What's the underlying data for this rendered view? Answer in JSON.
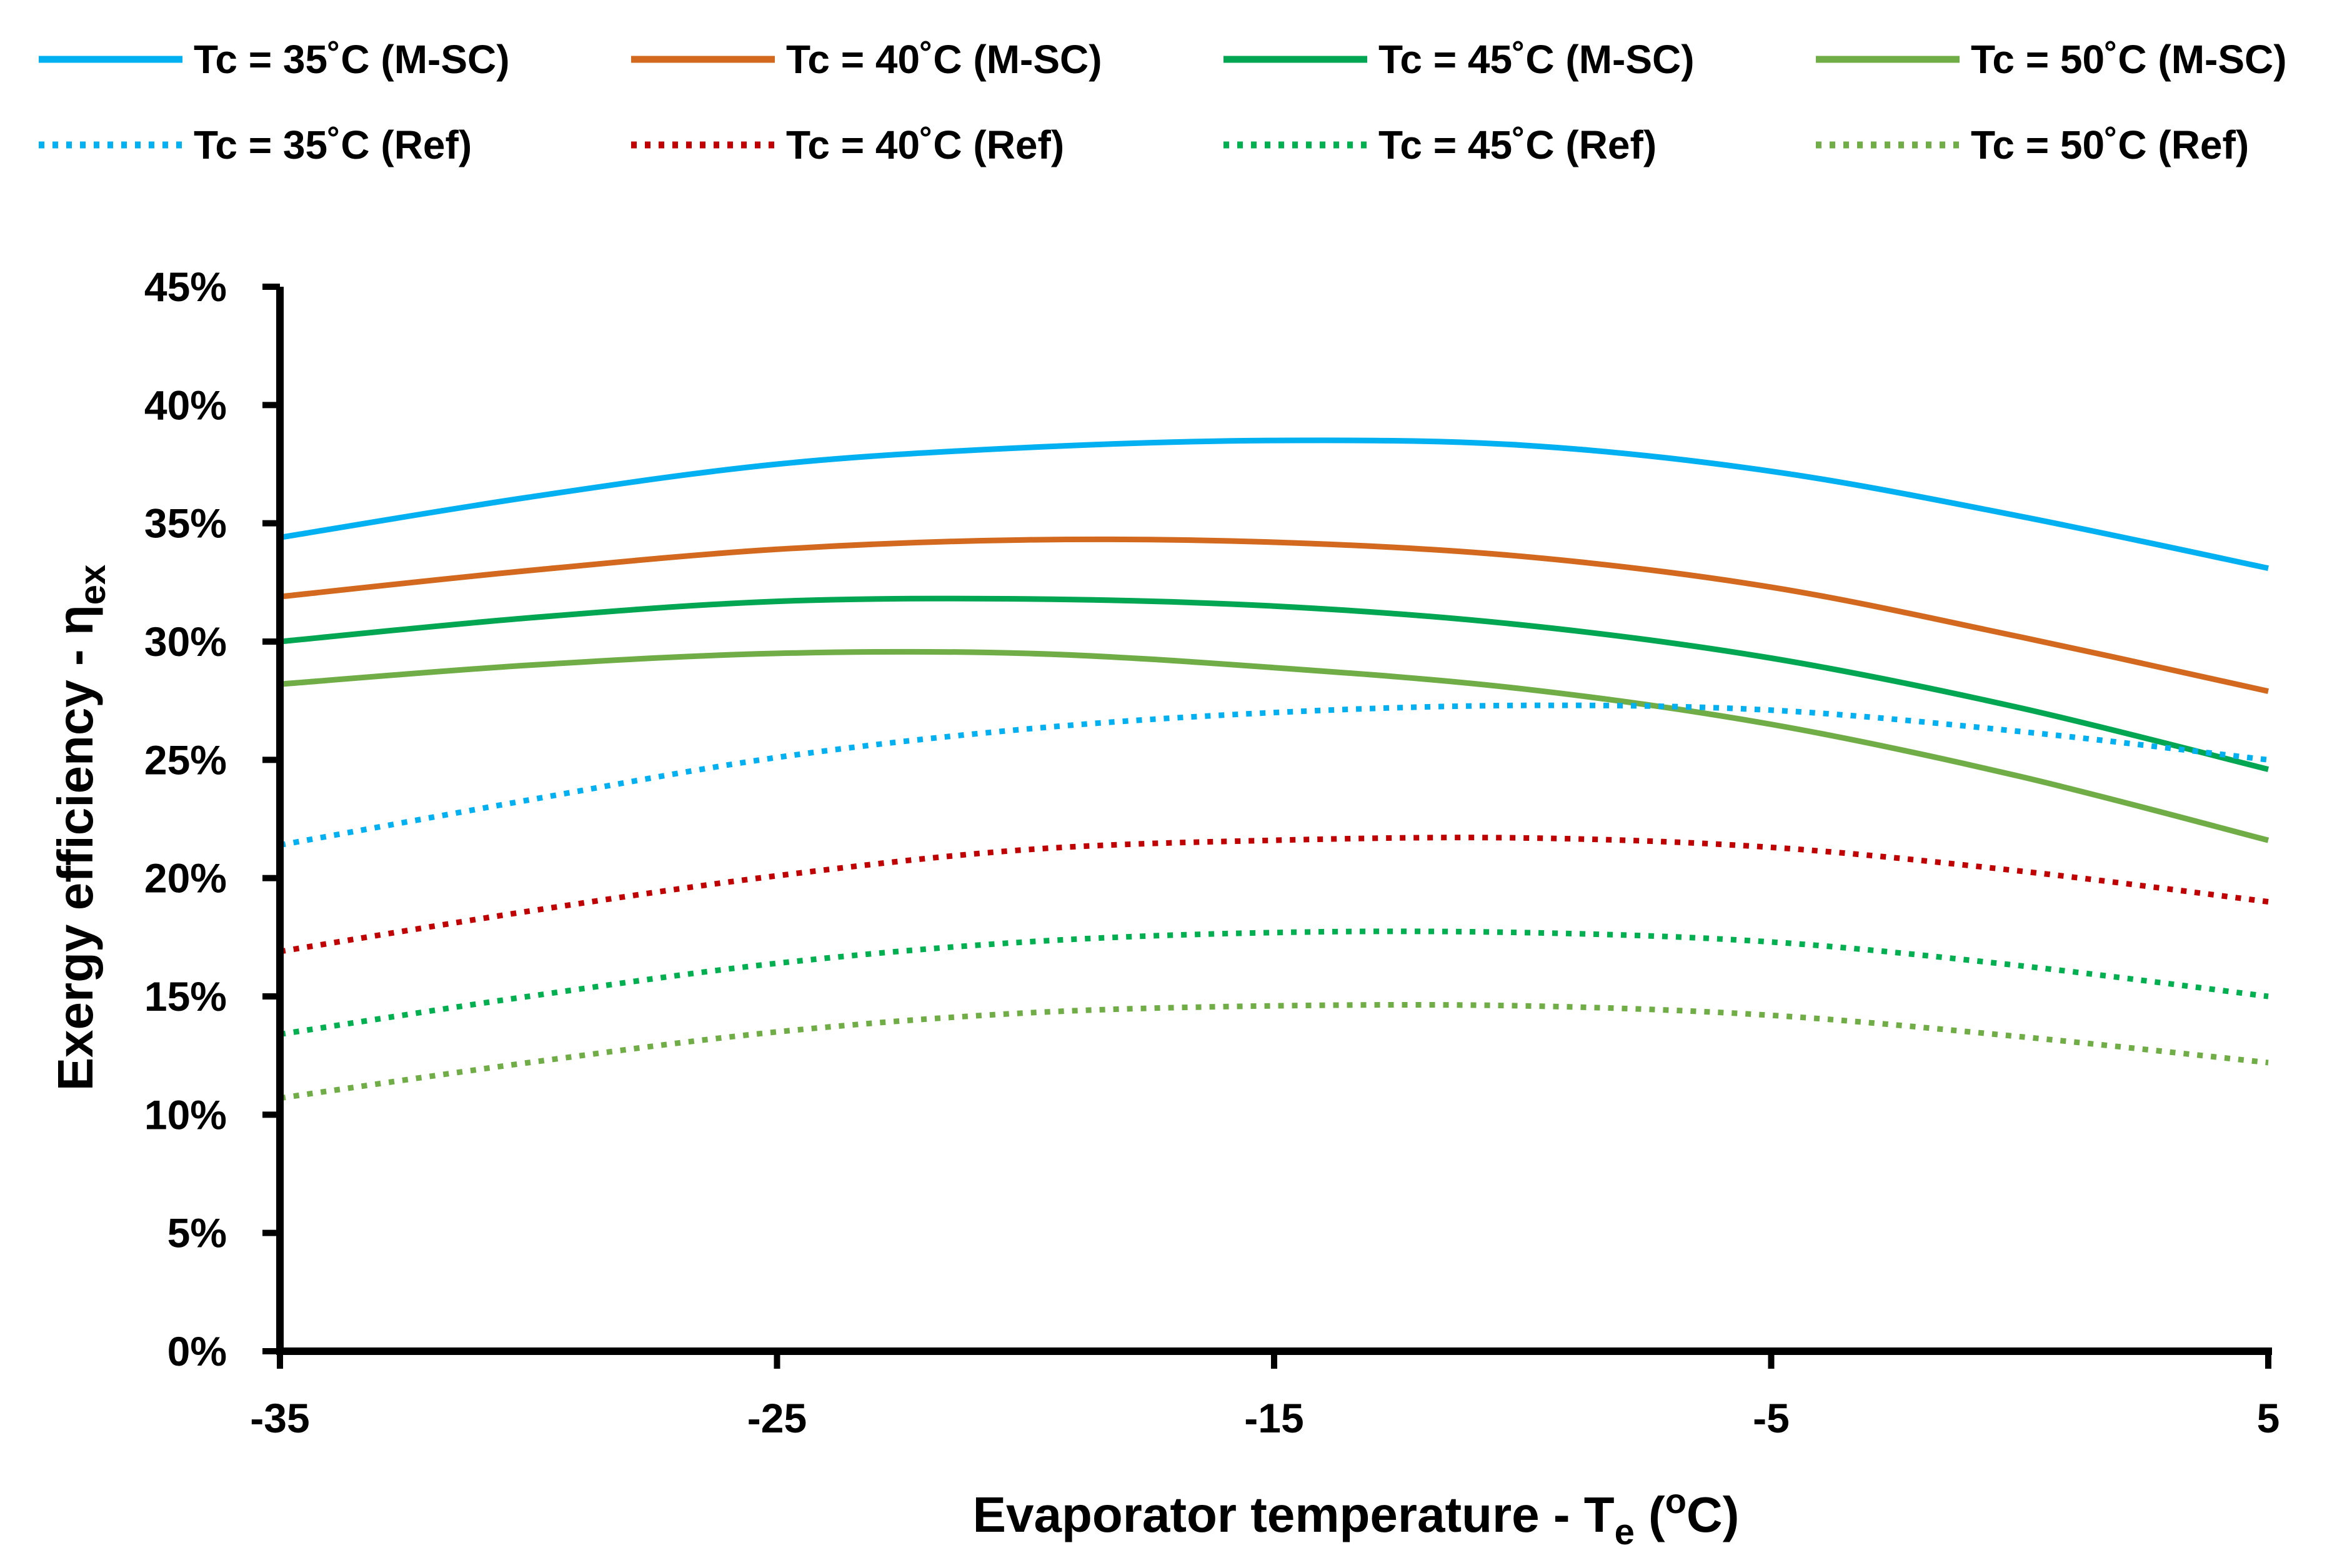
{
  "chart_data": {
    "type": "line",
    "title": "",
    "xlabel": {
      "main": "Evaporator temperature - T",
      "sub": "e",
      "open": " (",
      "sup": "o",
      "tail": "C)"
    },
    "ylabel": {
      "main": "Exergy efficiency - η",
      "sub": "ex"
    },
    "xlim": [
      -35,
      5
    ],
    "ylim": [
      0,
      45
    ],
    "x_ticks": [
      -35,
      -25,
      -15,
      -5,
      5
    ],
    "x_tick_labels": [
      "-35",
      "-25",
      "-15",
      "-5",
      "5"
    ],
    "y_ticks": [
      0,
      5,
      10,
      15,
      20,
      25,
      30,
      35,
      40,
      45
    ],
    "y_tick_labels": [
      "0%",
      "5%",
      "10%",
      "15%",
      "20%",
      "25%",
      "30%",
      "35%",
      "40%",
      "45%"
    ],
    "grid": false,
    "legend_position": "top",
    "x": [
      -35,
      -30,
      -25,
      -20,
      -15,
      -10,
      -5,
      0,
      5
    ],
    "series": [
      {
        "name": "Tc = 35˚C (M-SC)",
        "color": "#00b0f0",
        "style": "solid",
        "values": [
          34.4,
          36.1,
          37.5,
          38.2,
          38.5,
          38.3,
          37.2,
          35.3,
          33.1
        ]
      },
      {
        "name": "Tc = 40˚C (M-SC)",
        "color": "#d2691e",
        "style": "solid",
        "values": [
          31.9,
          33.0,
          33.9,
          34.3,
          34.2,
          33.6,
          32.3,
          30.2,
          27.9
        ]
      },
      {
        "name": "Tc = 45˚C (M-SC)",
        "color": "#00a651",
        "style": "solid",
        "values": [
          30.0,
          31.0,
          31.7,
          31.8,
          31.5,
          30.7,
          29.3,
          27.2,
          24.6
        ]
      },
      {
        "name": "Tc = 50˚C (M-SC)",
        "color": "#70ad47",
        "style": "solid",
        "values": [
          28.2,
          29.0,
          29.5,
          29.5,
          28.9,
          28.0,
          26.5,
          24.3,
          21.6
        ]
      },
      {
        "name": "Tc = 35˚C (Ref)",
        "color": "#00b0f0",
        "style": "dotted",
        "values": [
          21.4,
          23.3,
          25.1,
          26.3,
          27.0,
          27.3,
          27.1,
          26.2,
          25.0
        ]
      },
      {
        "name": "Tc = 40˚C (Ref)",
        "color": "#c00000",
        "style": "dotted",
        "values": [
          16.9,
          18.6,
          20.1,
          21.2,
          21.6,
          21.7,
          21.3,
          20.3,
          19.0
        ]
      },
      {
        "name": "Tc = 45˚C (Ref)",
        "color": "#00b050",
        "style": "dotted",
        "values": [
          13.4,
          15.0,
          16.4,
          17.3,
          17.7,
          17.7,
          17.3,
          16.3,
          15.0
        ]
      },
      {
        "name": "Tc = 50˚C (Ref)",
        "color": "#70ad47",
        "style": "dotted",
        "values": [
          10.7,
          12.2,
          13.5,
          14.3,
          14.6,
          14.6,
          14.2,
          13.3,
          12.2
        ]
      }
    ]
  }
}
